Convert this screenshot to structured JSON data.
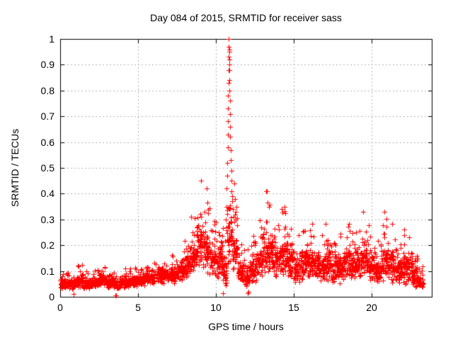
{
  "chart_data": {
    "type": "scatter",
    "title": "Day 084 of 2015, SRMTID for receiver sass",
    "xlabel": "GPS time / hours",
    "ylabel": "SRMTID / TECUs",
    "xlim": [
      0,
      23.86
    ],
    "ylim": [
      0,
      1
    ],
    "xticks": [
      [
        0,
        "0"
      ],
      [
        5,
        "5"
      ],
      [
        10,
        "10"
      ],
      [
        15,
        "15"
      ],
      [
        20,
        "20"
      ]
    ],
    "yticks": [
      [
        0,
        "0"
      ],
      [
        0.1,
        "0.1"
      ],
      [
        0.2,
        "0.2"
      ],
      [
        0.3,
        "0.3"
      ],
      [
        0.4,
        "0.4"
      ],
      [
        0.5,
        "0.5"
      ],
      [
        0.6,
        "0.6"
      ],
      [
        0.7,
        "0.7"
      ],
      [
        0.8,
        "0.8"
      ],
      [
        0.9,
        "0.9"
      ],
      [
        1,
        "1"
      ]
    ],
    "grid": true,
    "legend": "none",
    "marker": "plus",
    "marker_size_px": 7,
    "colors": {
      "marker": "#ff0000",
      "grid": "#b4b4b4",
      "frame": "#000000",
      "text": "#000000",
      "background": "#ffffff"
    },
    "density_points_per_hour": 120,
    "band_segments": [
      [
        0.0,
        0.5,
        0.03,
        0.1
      ],
      [
        0.5,
        1.0,
        0.03,
        0.09
      ],
      [
        1.0,
        1.5,
        0.035,
        0.13
      ],
      [
        1.5,
        2.0,
        0.03,
        0.1
      ],
      [
        2.0,
        2.5,
        0.035,
        0.11
      ],
      [
        2.5,
        3.0,
        0.04,
        0.12
      ],
      [
        3.0,
        3.5,
        0.03,
        0.1
      ],
      [
        3.5,
        4.0,
        0.03,
        0.1
      ],
      [
        4.0,
        4.5,
        0.035,
        0.11
      ],
      [
        4.5,
        5.0,
        0.04,
        0.12
      ],
      [
        5.0,
        5.5,
        0.04,
        0.12
      ],
      [
        5.5,
        6.0,
        0.05,
        0.13
      ],
      [
        6.0,
        6.5,
        0.05,
        0.14
      ],
      [
        6.5,
        7.0,
        0.05,
        0.16
      ],
      [
        7.0,
        7.5,
        0.05,
        0.17
      ],
      [
        7.5,
        8.0,
        0.06,
        0.21
      ],
      [
        8.0,
        8.4,
        0.06,
        0.26
      ],
      [
        8.4,
        8.8,
        0.08,
        0.33
      ],
      [
        8.8,
        9.2,
        0.09,
        0.46
      ],
      [
        9.2,
        9.6,
        0.09,
        0.42
      ],
      [
        9.6,
        10.0,
        0.08,
        0.3
      ],
      [
        10.0,
        10.4,
        0.07,
        0.26
      ],
      [
        10.4,
        10.7,
        0.02,
        0.32
      ],
      [
        10.7,
        11.05,
        0.12,
        0.55
      ],
      [
        11.05,
        11.4,
        0.08,
        0.4
      ],
      [
        11.4,
        11.8,
        0.05,
        0.22
      ],
      [
        11.8,
        12.2,
        0.03,
        0.2
      ],
      [
        12.2,
        12.6,
        0.04,
        0.26
      ],
      [
        12.6,
        13.0,
        0.06,
        0.3
      ],
      [
        13.0,
        13.4,
        0.08,
        0.41
      ],
      [
        13.4,
        13.8,
        0.08,
        0.38
      ],
      [
        13.8,
        14.2,
        0.07,
        0.3
      ],
      [
        14.2,
        14.6,
        0.08,
        0.35
      ],
      [
        14.6,
        15.0,
        0.06,
        0.28
      ],
      [
        15.0,
        15.4,
        0.05,
        0.25
      ],
      [
        15.4,
        15.8,
        0.06,
        0.28
      ],
      [
        15.8,
        16.2,
        0.06,
        0.3
      ],
      [
        16.2,
        16.6,
        0.06,
        0.28
      ],
      [
        16.6,
        17.0,
        0.05,
        0.25
      ],
      [
        17.0,
        17.4,
        0.06,
        0.3
      ],
      [
        17.4,
        17.8,
        0.05,
        0.24
      ],
      [
        17.8,
        18.2,
        0.05,
        0.26
      ],
      [
        18.2,
        18.6,
        0.06,
        0.3
      ],
      [
        18.6,
        19.0,
        0.05,
        0.28
      ],
      [
        19.0,
        19.4,
        0.06,
        0.31
      ],
      [
        19.4,
        19.8,
        0.07,
        0.33
      ],
      [
        19.8,
        20.2,
        0.05,
        0.26
      ],
      [
        20.2,
        20.6,
        0.04,
        0.22
      ],
      [
        20.6,
        21.0,
        0.05,
        0.33
      ],
      [
        21.0,
        21.4,
        0.05,
        0.3
      ],
      [
        21.4,
        21.8,
        0.04,
        0.24
      ],
      [
        21.8,
        22.2,
        0.04,
        0.27
      ],
      [
        22.2,
        22.6,
        0.05,
        0.28
      ],
      [
        22.6,
        23.0,
        0.03,
        0.2
      ],
      [
        23.0,
        23.3,
        0.03,
        0.12
      ]
    ],
    "peak_points": [
      [
        10.62,
        0.3
      ],
      [
        10.66,
        0.35
      ],
      [
        10.7,
        0.42
      ],
      [
        10.72,
        0.47
      ],
      [
        10.74,
        0.52
      ],
      [
        10.75,
        0.58
      ],
      [
        10.76,
        0.63
      ],
      [
        10.77,
        0.68
      ],
      [
        10.78,
        0.73
      ],
      [
        10.79,
        0.78
      ],
      [
        10.8,
        0.83
      ],
      [
        10.8,
        0.88
      ],
      [
        10.81,
        0.93
      ],
      [
        10.82,
        0.97
      ],
      [
        10.83,
        1.0
      ],
      [
        10.84,
        0.96
      ],
      [
        10.85,
        0.92
      ],
      [
        10.86,
        0.88
      ],
      [
        10.86,
        0.84
      ],
      [
        10.87,
        0.95
      ],
      [
        10.88,
        0.9
      ],
      [
        10.88,
        0.8
      ],
      [
        10.9,
        0.76
      ],
      [
        10.91,
        0.71
      ],
      [
        10.92,
        0.66
      ],
      [
        10.93,
        0.62
      ],
      [
        10.95,
        0.57
      ],
      [
        10.96,
        0.53
      ],
      [
        10.98,
        0.49
      ],
      [
        11.0,
        0.45
      ],
      [
        11.02,
        0.41
      ],
      [
        11.05,
        0.37
      ],
      [
        11.08,
        0.34
      ],
      [
        11.12,
        0.31
      ],
      [
        11.18,
        0.44
      ],
      [
        11.22,
        0.38
      ],
      [
        11.26,
        0.33
      ],
      [
        9.05,
        0.45
      ],
      [
        9.4,
        0.42
      ],
      [
        13.22,
        0.41
      ],
      [
        14.4,
        0.35
      ],
      [
        19.45,
        0.33
      ],
      [
        20.8,
        0.33
      ]
    ],
    "outlier_points": [
      [
        0.88,
        0.012
      ],
      [
        3.53,
        0.006
      ],
      [
        3.58,
        0.006
      ],
      [
        10.45,
        0.015
      ],
      [
        12.05,
        0.015
      ],
      [
        12.1,
        0.02
      ]
    ]
  }
}
